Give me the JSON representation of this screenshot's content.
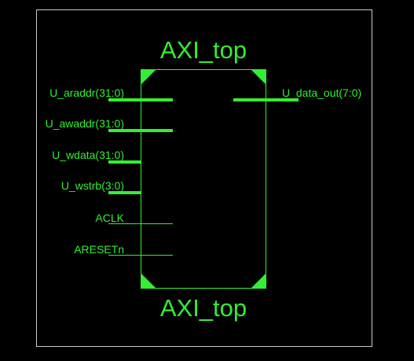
{
  "block": {
    "name_top": "AXI_top",
    "name_bottom": "AXI_top"
  },
  "ports": {
    "inputs": [
      {
        "name": "U_araddr(31:0)",
        "bus": true
      },
      {
        "name": "U_awaddr(31:0)",
        "bus": true
      },
      {
        "name": "U_wdata(31:0)",
        "bus": true
      },
      {
        "name": "U_wstrb(3:0)",
        "bus": true
      },
      {
        "name": "ACLK",
        "bus": false
      },
      {
        "name": "ARESETn",
        "bus": false
      }
    ],
    "outputs": [
      {
        "name": "U_data_out(7:0)",
        "bus": true
      }
    ]
  },
  "colors": {
    "background": "#000000",
    "wire": "#33ee33",
    "frame": "#cccccc"
  }
}
